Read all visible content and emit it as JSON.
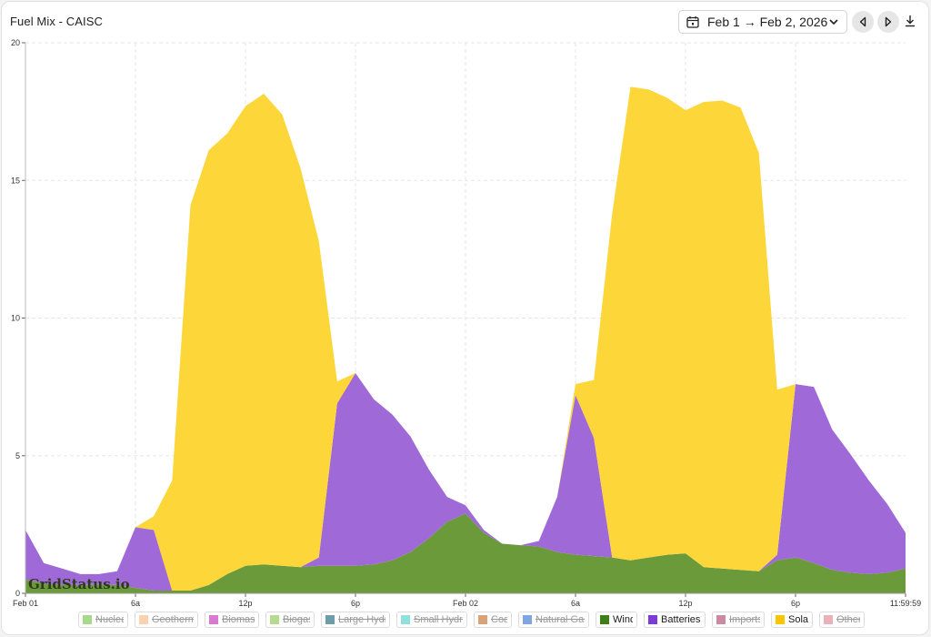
{
  "header": {
    "title": "Fuel Mix - CAISC",
    "date_range": "Feb 1 → Feb 2, 2026"
  },
  "watermark": "GridStatus.io",
  "chart_data": {
    "type": "area",
    "stacked": true,
    "title": "Fuel Mix - CAISC",
    "xlabel": "",
    "ylabel": "",
    "ylim": [
      0,
      20
    ],
    "yticks": [
      0,
      5,
      10,
      15,
      20
    ],
    "grid": true,
    "x_range_hours": [
      0,
      48
    ],
    "xticks": [
      {
        "hour": 0,
        "label": "Feb 01"
      },
      {
        "hour": 6,
        "label": "6a"
      },
      {
        "hour": 12,
        "label": "12p"
      },
      {
        "hour": 18,
        "label": "6p"
      },
      {
        "hour": 24,
        "label": "Feb 02"
      },
      {
        "hour": 30,
        "label": "6a"
      },
      {
        "hour": 36,
        "label": "12p"
      },
      {
        "hour": 42,
        "label": "6p"
      },
      {
        "hour": 48,
        "label": "11:59:59"
      }
    ],
    "x_hours": [
      0,
      1,
      2,
      3,
      4,
      5,
      6,
      7,
      8,
      9,
      10,
      11,
      12,
      13,
      14,
      15,
      16,
      17,
      18,
      19,
      20,
      21,
      22,
      23,
      24,
      25,
      26,
      27,
      28,
      29,
      30,
      31,
      32,
      33,
      34,
      35,
      36,
      37,
      38,
      39,
      40,
      41,
      42,
      43,
      44,
      45,
      46,
      47,
      48
    ],
    "legend_position": "bottom",
    "series": [
      {
        "name": "Wind",
        "color": "#6b9a3a",
        "values": [
          0.5,
          0.35,
          0.3,
          0.3,
          0.3,
          0.3,
          0.2,
          0.1,
          0.1,
          0.1,
          0.3,
          0.7,
          1.0,
          1.05,
          1.0,
          0.95,
          1.0,
          1.0,
          1.0,
          1.05,
          1.2,
          1.5,
          2.0,
          2.6,
          2.9,
          2.2,
          1.8,
          1.75,
          1.7,
          1.5,
          1.4,
          1.35,
          1.3,
          1.2,
          1.3,
          1.4,
          1.45,
          0.95,
          0.9,
          0.85,
          0.8,
          1.2,
          1.3,
          1.1,
          0.85,
          0.75,
          0.7,
          0.75,
          0.9
        ]
      },
      {
        "name": "Batteries",
        "color": "#9f6ad8",
        "values": [
          1.8,
          0.75,
          0.6,
          0.4,
          0.4,
          0.5,
          2.2,
          2.2,
          0,
          0,
          0,
          0,
          0,
          0,
          0,
          0,
          0.3,
          5.9,
          7.0,
          6.0,
          5.3,
          4.2,
          2.5,
          0.9,
          0.3,
          0.1,
          0,
          0,
          0.2,
          2.0,
          5.8,
          4.3,
          0,
          0,
          0,
          0,
          0,
          0,
          0,
          0,
          0,
          0.2,
          6.3,
          6.4,
          5.1,
          4.3,
          3.4,
          2.5,
          1.3
        ]
      },
      {
        "name": "Solar",
        "color": "#fdd63a",
        "values": [
          0,
          0,
          0,
          0,
          0,
          0,
          0,
          0.5,
          4.0,
          14.0,
          15.8,
          16.0,
          16.7,
          17.1,
          16.4,
          14.5,
          11.5,
          0.8,
          0,
          0,
          0,
          0,
          0,
          0,
          0,
          0,
          0,
          0,
          0,
          0,
          0.4,
          2.1,
          12.5,
          17.2,
          17.0,
          16.6,
          16.1,
          16.9,
          17.0,
          16.8,
          15.2,
          6.0,
          0,
          0,
          0,
          0,
          0,
          0,
          0
        ]
      }
    ]
  },
  "legend": [
    {
      "label": "Nuclear",
      "color": "#a8d78e",
      "enabled": false
    },
    {
      "label": "Geothermal",
      "color": "#f9d3b0",
      "enabled": false
    },
    {
      "label": "Biomass",
      "color": "#d77ad0",
      "enabled": false
    },
    {
      "label": "Biogas",
      "color": "#b5db8e",
      "enabled": false
    },
    {
      "label": "Large Hydro",
      "color": "#6d9ea8",
      "enabled": false
    },
    {
      "label": "Small Hydro",
      "color": "#8fe2dc",
      "enabled": false
    },
    {
      "label": "Coal",
      "color": "#d9a277",
      "enabled": false
    },
    {
      "label": "Natural Gas",
      "color": "#7fa5e3",
      "enabled": false
    },
    {
      "label": "Wind",
      "color": "#3f7f1a",
      "enabled": true
    },
    {
      "label": "Batteries",
      "color": "#7c3ad6",
      "enabled": true
    },
    {
      "label": "Imports",
      "color": "#c98aa2",
      "enabled": false
    },
    {
      "label": "Solar",
      "color": "#f7c600",
      "enabled": true
    },
    {
      "label": "Other",
      "color": "#ecb1b8",
      "enabled": false
    }
  ]
}
